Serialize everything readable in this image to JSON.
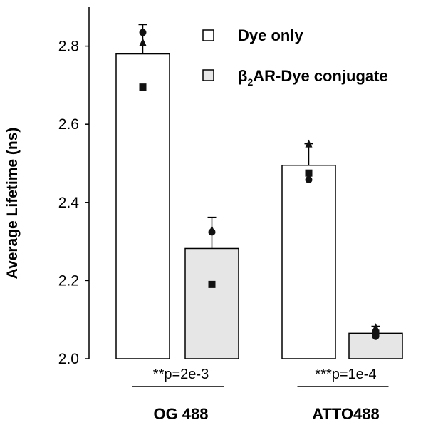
{
  "chart_data": {
    "type": "bar",
    "categories": [
      "OG 488",
      "ATTO488"
    ],
    "ylabel": "Average Lifetime (ns)",
    "ylim": [
      2.0,
      2.9
    ],
    "yticks": [
      "2.0",
      "2.2",
      "2.4",
      "2.6",
      "2.8"
    ],
    "legend_position": "top-right",
    "grid": false,
    "series": [
      {
        "name": "Dye only",
        "color": "#ffffff",
        "values": [
          2.78,
          2.495
        ],
        "error_upper": [
          2.855,
          2.55
        ],
        "points": [
          {
            "circle": 2.835,
            "triangle": 2.81,
            "square": 2.695
          },
          {
            "circle": 2.458,
            "triangle": 2.55,
            "square": 2.475
          }
        ]
      },
      {
        "name": "β2AR-Dye conjugate",
        "name_parts": {
          "pre": "β",
          "sub": "2",
          "post": "AR-Dye conjugate"
        },
        "color": "#e6e6e6",
        "values": [
          2.282,
          2.065
        ],
        "error_upper": [
          2.362,
          2.083
        ],
        "points": [
          {
            "circle": 2.324,
            "triangle": 2.33,
            "square": 2.19
          },
          {
            "circle": 2.057,
            "triangle": 2.08,
            "square": 2.065
          }
        ]
      }
    ],
    "annotations": [
      {
        "category": "OG 488",
        "text": "**p=2e-3"
      },
      {
        "category": "ATTO488",
        "text": "***p=1e-4"
      }
    ]
  }
}
